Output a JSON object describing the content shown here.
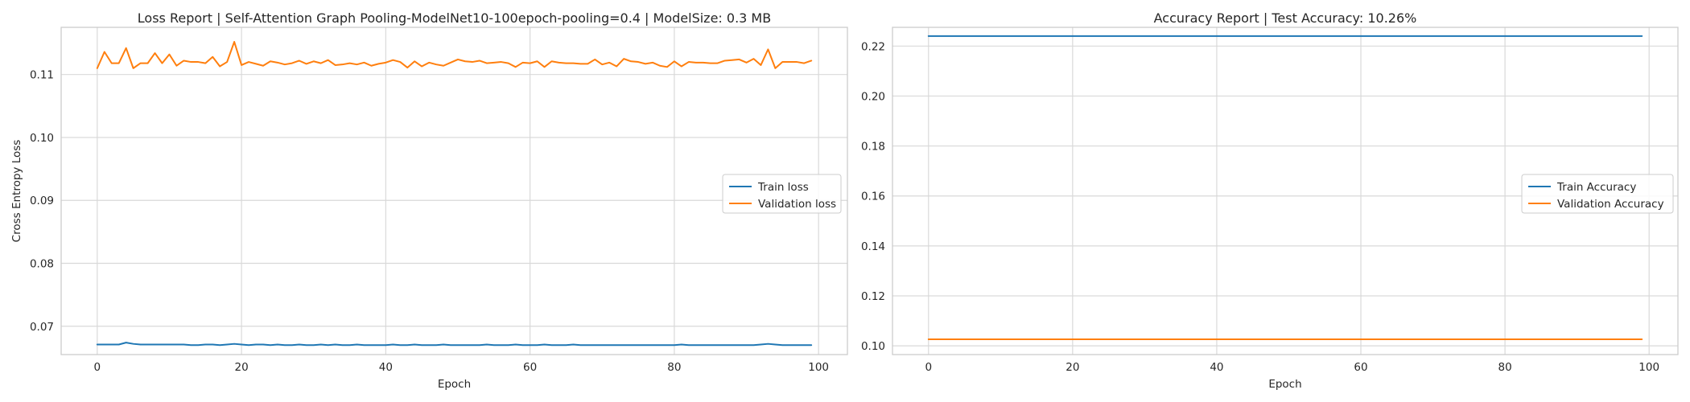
{
  "chart_data": [
    {
      "type": "line",
      "title": "Loss Report | Self-Attention Graph Pooling-ModelNet10-100epoch-pooling=0.4 | ModelSize: 0.3 MB",
      "xlabel": "Epoch",
      "ylabel": "Cross Entropy Loss",
      "xlim": [
        -5,
        104
      ],
      "ylim": [
        0.0655,
        0.1175
      ],
      "xticks": [
        0,
        20,
        40,
        60,
        80,
        100
      ],
      "xtick_labels": [
        "0",
        "20",
        "40",
        "60",
        "80",
        "100"
      ],
      "yticks": [
        0.07,
        0.08,
        0.09,
        0.1,
        0.11
      ],
      "ytick_labels": [
        "0.07",
        "0.08",
        "0.09",
        "0.10",
        "0.11"
      ],
      "grid": true,
      "legend": "center-right",
      "series": [
        {
          "name": "Train loss",
          "color": "#1f77b4",
          "x": [
            0,
            1,
            2,
            3,
            4,
            5,
            6,
            7,
            8,
            9,
            10,
            11,
            12,
            13,
            14,
            15,
            16,
            17,
            18,
            19,
            20,
            21,
            22,
            23,
            24,
            25,
            26,
            27,
            28,
            29,
            30,
            31,
            32,
            33,
            34,
            35,
            36,
            37,
            38,
            39,
            40,
            41,
            42,
            43,
            44,
            45,
            46,
            47,
            48,
            49,
            50,
            51,
            52,
            53,
            54,
            55,
            56,
            57,
            58,
            59,
            60,
            61,
            62,
            63,
            64,
            65,
            66,
            67,
            68,
            69,
            70,
            71,
            72,
            73,
            74,
            75,
            76,
            77,
            78,
            79,
            80,
            81,
            82,
            83,
            84,
            85,
            86,
            87,
            88,
            89,
            90,
            91,
            92,
            93,
            94,
            95,
            96,
            97,
            98,
            99
          ],
          "values": [
            0.0671,
            0.0671,
            0.0671,
            0.0671,
            0.0674,
            0.0672,
            0.0671,
            0.0671,
            0.0671,
            0.0671,
            0.0671,
            0.0671,
            0.0671,
            0.067,
            0.067,
            0.0671,
            0.0671,
            0.067,
            0.0671,
            0.0672,
            0.0671,
            0.067,
            0.0671,
            0.0671,
            0.067,
            0.0671,
            0.067,
            0.067,
            0.0671,
            0.067,
            0.067,
            0.0671,
            0.067,
            0.0671,
            0.067,
            0.067,
            0.0671,
            0.067,
            0.067,
            0.067,
            0.067,
            0.0671,
            0.067,
            0.067,
            0.0671,
            0.067,
            0.067,
            0.067,
            0.0671,
            0.067,
            0.067,
            0.067,
            0.067,
            0.067,
            0.0671,
            0.067,
            0.067,
            0.067,
            0.0671,
            0.067,
            0.067,
            0.067,
            0.0671,
            0.067,
            0.067,
            0.067,
            0.0671,
            0.067,
            0.067,
            0.067,
            0.067,
            0.067,
            0.067,
            0.067,
            0.067,
            0.067,
            0.067,
            0.067,
            0.067,
            0.067,
            0.067,
            0.0671,
            0.067,
            0.067,
            0.067,
            0.067,
            0.067,
            0.067,
            0.067,
            0.067,
            0.067,
            0.067,
            0.0671,
            0.0672,
            0.0671,
            0.067,
            0.067,
            0.067,
            0.067,
            0.067
          ]
        },
        {
          "name": "Validation loss",
          "color": "#ff7f0e",
          "x": [
            0,
            1,
            2,
            3,
            4,
            5,
            6,
            7,
            8,
            9,
            10,
            11,
            12,
            13,
            14,
            15,
            16,
            17,
            18,
            19,
            20,
            21,
            22,
            23,
            24,
            25,
            26,
            27,
            28,
            29,
            30,
            31,
            32,
            33,
            34,
            35,
            36,
            37,
            38,
            39,
            40,
            41,
            42,
            43,
            44,
            45,
            46,
            47,
            48,
            49,
            50,
            51,
            52,
            53,
            54,
            55,
            56,
            57,
            58,
            59,
            60,
            61,
            62,
            63,
            64,
            65,
            66,
            67,
            68,
            69,
            70,
            71,
            72,
            73,
            74,
            75,
            76,
            77,
            78,
            79,
            80,
            81,
            82,
            83,
            84,
            85,
            86,
            87,
            88,
            89,
            90,
            91,
            92,
            93,
            94,
            95,
            96,
            97,
            98,
            99
          ],
          "values": [
            0.111,
            0.1136,
            0.1118,
            0.1118,
            0.1142,
            0.111,
            0.1118,
            0.1118,
            0.1134,
            0.1118,
            0.1132,
            0.1114,
            0.1122,
            0.112,
            0.112,
            0.1118,
            0.1128,
            0.1113,
            0.112,
            0.1152,
            0.1115,
            0.112,
            0.1117,
            0.1114,
            0.1121,
            0.1119,
            0.1116,
            0.1118,
            0.1122,
            0.1117,
            0.1121,
            0.1118,
            0.1123,
            0.1115,
            0.1116,
            0.1118,
            0.1116,
            0.1119,
            0.1114,
            0.1117,
            0.1119,
            0.1123,
            0.112,
            0.1111,
            0.1121,
            0.1113,
            0.1119,
            0.1116,
            0.1114,
            0.1119,
            0.1124,
            0.1121,
            0.112,
            0.1122,
            0.1118,
            0.1119,
            0.112,
            0.1118,
            0.1112,
            0.1119,
            0.1118,
            0.1121,
            0.1112,
            0.1121,
            0.1119,
            0.1118,
            0.1118,
            0.1117,
            0.1117,
            0.1124,
            0.1116,
            0.1119,
            0.1113,
            0.1125,
            0.1121,
            0.112,
            0.1117,
            0.1119,
            0.1114,
            0.1112,
            0.1121,
            0.1113,
            0.112,
            0.1119,
            0.1119,
            0.1118,
            0.1118,
            0.1122,
            0.1123,
            0.1124,
            0.1119,
            0.1125,
            0.1115,
            0.114,
            0.111,
            0.112,
            0.112,
            0.112,
            0.1118,
            0.1122
          ]
        }
      ]
    },
    {
      "type": "line",
      "title": "Accuracy Report | Test Accuracy: 10.26%",
      "xlabel": "Epoch",
      "ylabel": "",
      "xlim": [
        -5,
        104
      ],
      "ylim": [
        0.0965,
        0.2275
      ],
      "xticks": [
        0,
        20,
        40,
        60,
        80,
        100
      ],
      "xtick_labels": [
        "0",
        "20",
        "40",
        "60",
        "80",
        "100"
      ],
      "yticks": [
        0.1,
        0.12,
        0.14,
        0.16,
        0.18,
        0.2,
        0.22
      ],
      "ytick_labels": [
        "0.10",
        "0.12",
        "0.14",
        "0.16",
        "0.18",
        "0.20",
        "0.22"
      ],
      "grid": true,
      "legend": "center-right",
      "series": [
        {
          "name": "Train Accuracy",
          "color": "#1f77b4",
          "x": [
            0,
            99
          ],
          "values": [
            0.224,
            0.224
          ]
        },
        {
          "name": "Validation Accuracy",
          "color": "#ff7f0e",
          "x": [
            0,
            99
          ],
          "values": [
            0.1026,
            0.1026
          ]
        }
      ]
    }
  ]
}
